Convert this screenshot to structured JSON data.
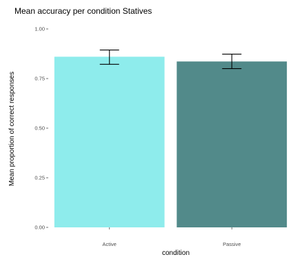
{
  "chart_data": {
    "type": "bar",
    "title": "Mean accuracy per condition Statives",
    "xlabel": "condition",
    "ylabel": "Mean proportion of correct responses",
    "categories": [
      "Active",
      "Passive"
    ],
    "values": [
      0.86,
      0.836
    ],
    "error_low": [
      0.822,
      0.8
    ],
    "error_high": [
      0.894,
      0.873
    ],
    "colors": [
      "#8eecec",
      "#528a8a"
    ],
    "ylim": [
      0,
      1
    ],
    "yticks": [
      "0.00",
      "0.25",
      "0.50",
      "0.75",
      "1.00"
    ],
    "ytick_values": [
      0,
      0.25,
      0.5,
      0.75,
      1
    ],
    "grid": false,
    "legend": "none"
  }
}
